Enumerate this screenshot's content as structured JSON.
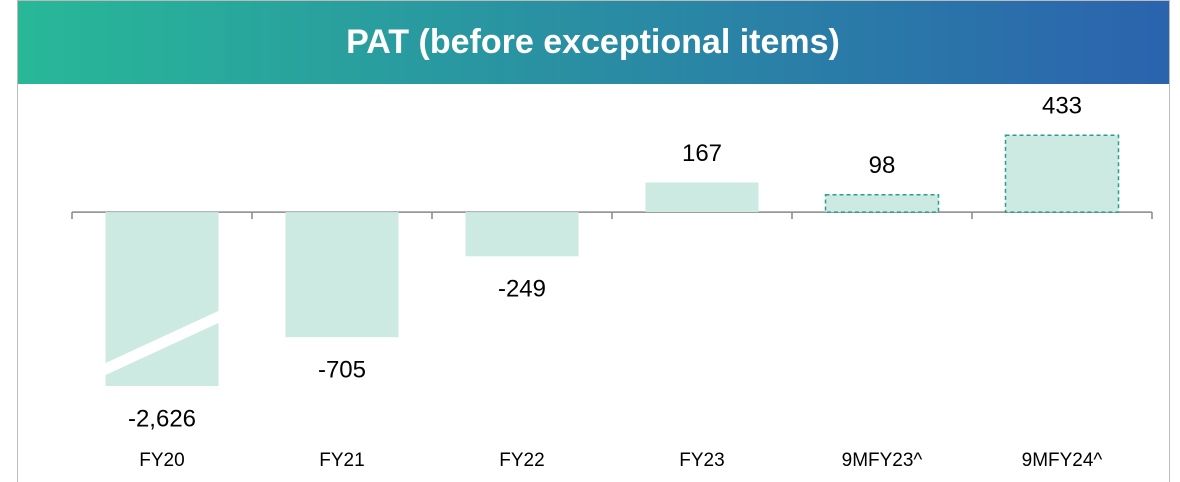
{
  "chart_data": {
    "type": "bar",
    "title": "PAT (before exceptional items)",
    "categories": [
      "FY20",
      "FY21",
      "FY22",
      "FY23",
      "9MFY23^",
      "9MFY24^"
    ],
    "values": [
      -2626,
      -705,
      -249,
      167,
      98,
      433
    ],
    "value_labels": [
      "-2,626",
      "-705",
      "-249",
      "167",
      "98",
      "433"
    ],
    "dashed": [
      false,
      false,
      false,
      false,
      true,
      true
    ],
    "color": "#cdeae2",
    "dash_color": "#2a9d8f",
    "ylim": [
      -980,
      440
    ]
  }
}
